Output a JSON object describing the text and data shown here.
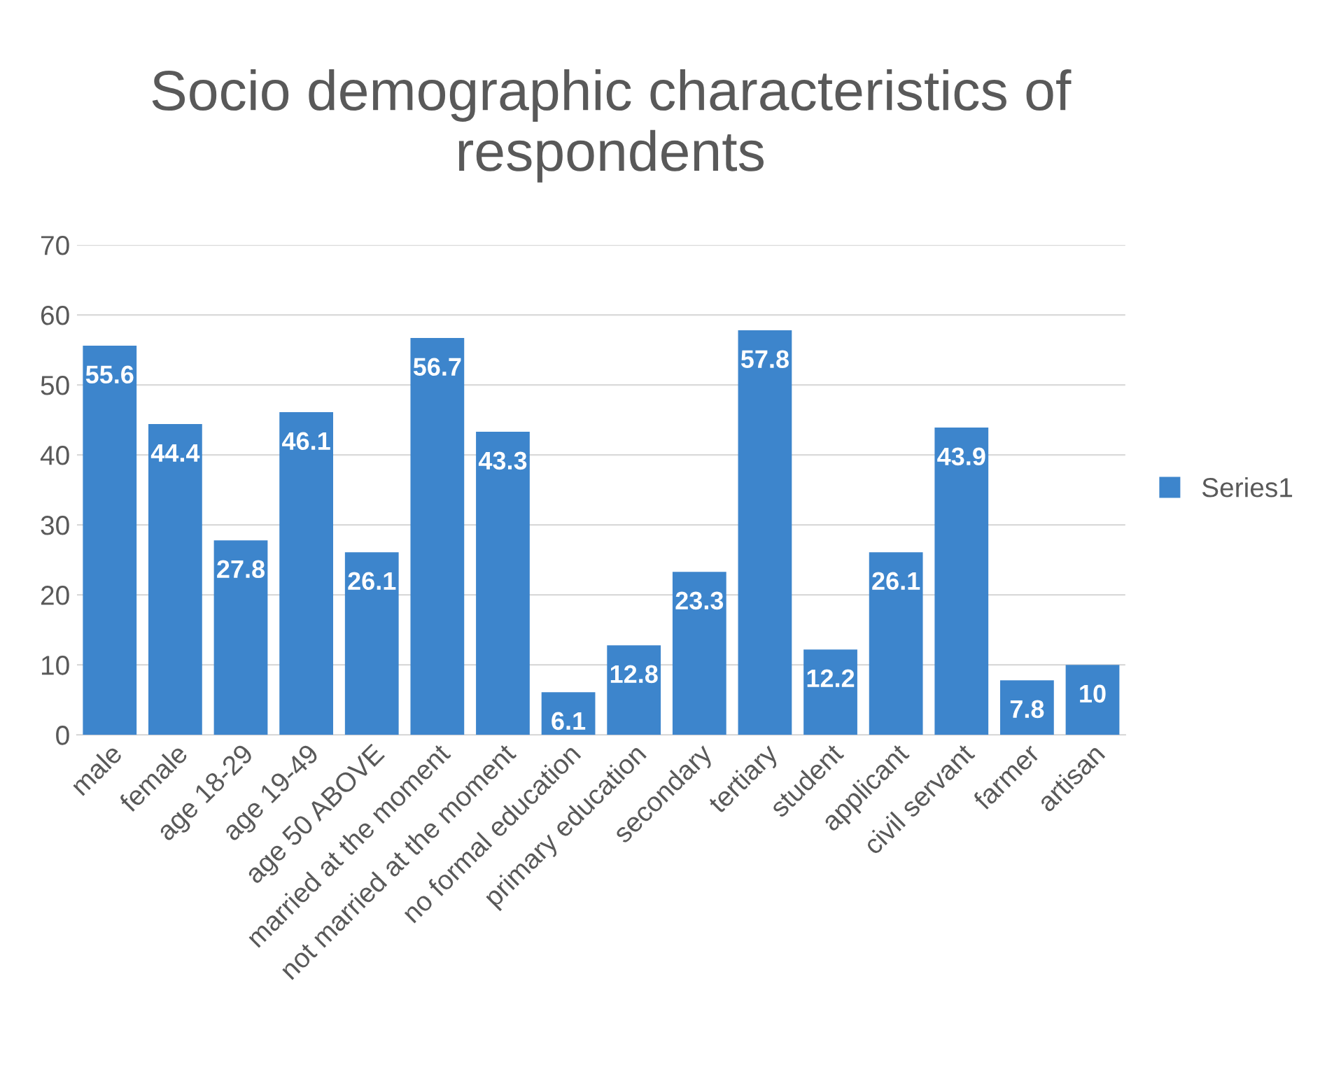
{
  "chart_data": {
    "type": "bar",
    "title": "Socio demographic characteristics of respondents",
    "categories": [
      "male",
      "female",
      "age 18-29",
      "age 19-49",
      "age 50 ABOVE",
      "married at the moment",
      "not married at the moment",
      "no formal education",
      "primary education",
      "secondary",
      "tertiary",
      "student",
      "applicant",
      "civil servant",
      "farmer",
      "artisan"
    ],
    "series": [
      {
        "name": "Series1",
        "color": "#3d85cc",
        "values": [
          55.6,
          44.4,
          27.8,
          46.1,
          26.1,
          56.7,
          43.3,
          6.1,
          12.8,
          23.3,
          57.8,
          12.2,
          26.1,
          43.9,
          7.8,
          10
        ]
      }
    ],
    "ylim": [
      0,
      70
    ],
    "yticks": [
      0,
      10,
      20,
      30,
      40,
      50,
      60,
      70
    ],
    "grid": "y",
    "legend": "right",
    "data_labels": true
  }
}
